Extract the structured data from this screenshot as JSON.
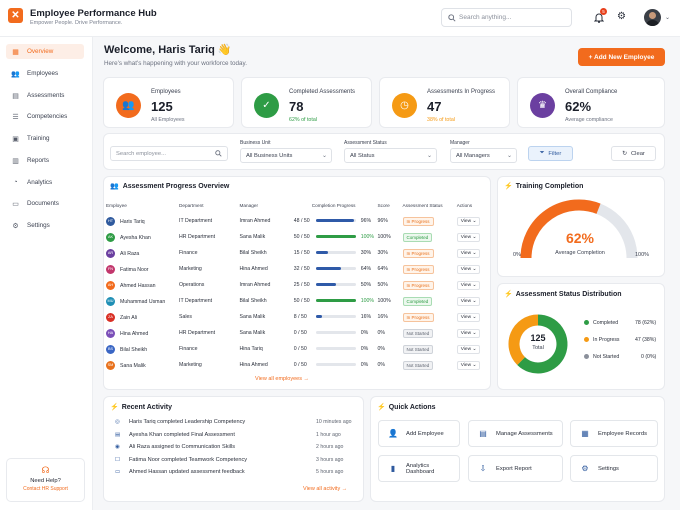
{
  "app": {
    "name": "Employee Performance Hub",
    "tagline": "Empower People. Drive Performance."
  },
  "topbar": {
    "search_placeholder": "Search anything...",
    "notifications_count": "5"
  },
  "sidebar": {
    "items": [
      {
        "label": "Overview",
        "icon": "grid-icon",
        "active": true
      },
      {
        "label": "Employees",
        "icon": "users-icon"
      },
      {
        "label": "Assessments",
        "icon": "clipboard-icon"
      },
      {
        "label": "Competencies",
        "icon": "list-icon"
      },
      {
        "label": "Training",
        "icon": "book-icon"
      },
      {
        "label": "Reports",
        "icon": "report-icon"
      },
      {
        "label": "Analytics",
        "icon": "analytics-icon"
      },
      {
        "label": "Documents",
        "icon": "folder-icon"
      },
      {
        "label": "Settings",
        "icon": "gear-icon"
      }
    ],
    "help": {
      "title": "Need Help?",
      "link": "Contact HR Support"
    }
  },
  "header": {
    "welcome": "Welcome, Haris Tariq 👋",
    "subtitle": "Here's what's happening with your workforce today.",
    "add_button": "+ Add New Employee"
  },
  "stats": [
    {
      "label": "Employees",
      "value": "125",
      "foot": "All Employees",
      "color": "#f26b1d",
      "icon": "users-icon"
    },
    {
      "label": "Completed Assessments",
      "value": "78",
      "foot": "62% of total",
      "color": "#2e9c45",
      "icon": "check-icon"
    },
    {
      "label": "Assessments In Progress",
      "value": "47",
      "foot": "38% of total",
      "color": "#f59a14",
      "icon": "clock-icon"
    },
    {
      "label": "Overall Compliance",
      "value": "62%",
      "foot": "Average compliance",
      "color": "#6b3fa0",
      "icon": "trophy-icon"
    }
  ],
  "filters": {
    "search_placeholder": "Search employee...",
    "business_unit": {
      "label": "Business Unit",
      "value": "All Business Units"
    },
    "status": {
      "label": "Assessment Status",
      "value": "All Status"
    },
    "manager": {
      "label": "Manager",
      "value": "All Managers"
    },
    "filter_button": "Filter",
    "clear_button": "Clear"
  },
  "progress_table": {
    "title": "Assessment Progress Overview",
    "headers": [
      "Employee",
      "Department",
      "Manager",
      "Completion Progress",
      "Score",
      "Assessment Status",
      "Actions"
    ],
    "rows": [
      {
        "initials": "HT",
        "name": "Haris Tariq",
        "dept": "IT Department",
        "manager": "Imran Ahmed",
        "progress": "48 / 50",
        "pct": "96%",
        "fill": 96,
        "score": "96%",
        "status": "In Progress",
        "color": "#2f5a9e"
      },
      {
        "initials": "AK",
        "name": "Ayesha Khan",
        "dept": "HR Department",
        "manager": "Sana Malik",
        "progress": "50 / 50",
        "pct": "100%",
        "fill": 100,
        "score": "100%",
        "status": "Completed",
        "color": "#2e9c45"
      },
      {
        "initials": "AR",
        "name": "Ali Raza",
        "dept": "Finance",
        "manager": "Bilal Sheikh",
        "progress": "15 / 50",
        "pct": "30%",
        "fill": 30,
        "score": "30%",
        "status": "In Progress",
        "color": "#6b3fa0"
      },
      {
        "initials": "FN",
        "name": "Fatima Noor",
        "dept": "Marketing",
        "manager": "Hina Ahmed",
        "progress": "32 / 50",
        "pct": "64%",
        "fill": 64,
        "score": "64%",
        "status": "In Progress",
        "color": "#c2366c"
      },
      {
        "initials": "AH",
        "name": "Ahmed Hassan",
        "dept": "Operations",
        "manager": "Imran Ahmed",
        "progress": "25 / 50",
        "pct": "50%",
        "fill": 50,
        "score": "50%",
        "status": "In Progress",
        "color": "#f26b1d"
      },
      {
        "initials": "MU",
        "name": "Muhammad Usman",
        "dept": "IT Department",
        "manager": "Bilal Sheikh",
        "progress": "50 / 50",
        "pct": "100%",
        "fill": 100,
        "score": "100%",
        "status": "Completed",
        "color": "#1f8fb5"
      },
      {
        "initials": "ZA",
        "name": "Zain Ali",
        "dept": "Sales",
        "manager": "Sana Malik",
        "progress": "8 / 50",
        "pct": "16%",
        "fill": 16,
        "score": "16%",
        "status": "In Progress",
        "color": "#d93025"
      },
      {
        "initials": "HA",
        "name": "Hina Ahmed",
        "dept": "HR Department",
        "manager": "Sana Malik",
        "progress": "0 / 50",
        "pct": "0%",
        "fill": 0,
        "score": "0%",
        "status": "Not Started",
        "color": "#7b4fb8"
      },
      {
        "initials": "BS",
        "name": "Bilal Sheikh",
        "dept": "Finance",
        "manager": "Hina Tariq",
        "progress": "0 / 50",
        "pct": "0%",
        "fill": 0,
        "score": "0%",
        "status": "Not Started",
        "color": "#3a66c4"
      },
      {
        "initials": "SM",
        "name": "Sana Malik",
        "dept": "Marketing",
        "manager": "Hina Ahmed",
        "progress": "0 / 50",
        "pct": "0%",
        "fill": 0,
        "score": "0%",
        "status": "Not Started",
        "color": "#e8711c"
      }
    ],
    "action_label": "View",
    "view_all": "View all employees →"
  },
  "training": {
    "title": "Training Completion",
    "value": 62,
    "value_label": "62%",
    "caption": "Average Completion",
    "min": "0%",
    "max": "100%"
  },
  "distribution": {
    "title": "Assessment Status Distribution",
    "total": "125",
    "total_label": "Total",
    "items": [
      {
        "label": "Completed",
        "value": 78,
        "display": "78 (62%)",
        "color": "#2e9c45"
      },
      {
        "label": "In Progress",
        "value": 47,
        "display": "47 (38%)",
        "color": "#f59a14"
      },
      {
        "label": "Not Started",
        "value": 0,
        "display": "0 (0%)",
        "color": "#8b909b"
      }
    ]
  },
  "activity": {
    "title": "Recent Activity",
    "items": [
      {
        "text": "Haris Tariq completed Leadership Competency",
        "time": "10 minutes ago"
      },
      {
        "text": "Ayesha Khan completed Final Assessment",
        "time": "1 hour ago"
      },
      {
        "text": "Ali Raza assigned to Communication Skills",
        "time": "2 hours ago"
      },
      {
        "text": "Fatima Noor completed Teamwork Competency",
        "time": "3 hours ago"
      },
      {
        "text": "Ahmed Hassan updated assessment feedback",
        "time": "5 hours ago"
      }
    ],
    "view_all": "View all activity →"
  },
  "quick_actions": {
    "title": "Quick Actions",
    "items": [
      {
        "label": "Add Employee",
        "icon": "add-user-icon"
      },
      {
        "label": "Manage Assessments",
        "icon": "clipboard-icon"
      },
      {
        "label": "Employee Records",
        "icon": "records-icon"
      },
      {
        "label": "Analytics Dashboard",
        "icon": "analytics-icon"
      },
      {
        "label": "Export Report",
        "icon": "export-icon"
      },
      {
        "label": "Settings",
        "icon": "gear-icon"
      }
    ]
  }
}
